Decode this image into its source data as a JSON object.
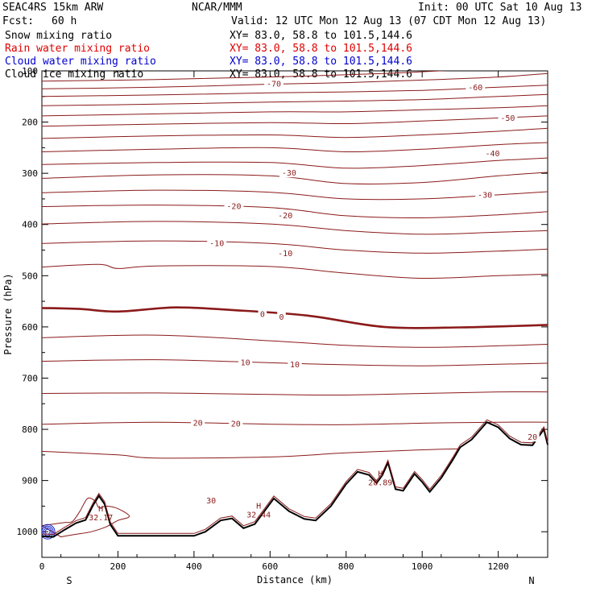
{
  "header": {
    "model": "SEAC4RS 15km ARW",
    "org": "NCAR/MMM",
    "init": "Init: 00 UTC Sat 10 Aug 13",
    "fcst_label": "Fcst:",
    "fcst_value": "60 h",
    "valid": "Valid: 12 UTC Mon 12 Aug 13 (07 CDT Mon 12 Aug 13)"
  },
  "legend": [
    {
      "name": "Snow mixing ratio",
      "xy": "XY=  83.0, 58.8 to 101.5,144.6",
      "color": "#000000"
    },
    {
      "name": "Rain water mixing ratio",
      "xy": "XY=  83.0, 58.8 to 101.5,144.6",
      "color": "#e00000"
    },
    {
      "name": "Cloud water mixing ratio",
      "xy": "XY=  83.0, 58.8 to 101.5,144.6",
      "color": "#0000d0"
    },
    {
      "name": "Cloud ice mixing ratio",
      "xy": "XY=  83.0, 58.8 to 101.5,144.6",
      "color": "#000000"
    }
  ],
  "chart_data": {
    "type": "line",
    "xlabel": "Distance (km)",
    "ylabel": "Pressure (hPa)",
    "xlim": [
      0,
      1330
    ],
    "ylim": [
      1050,
      100
    ],
    "x_ticks": [
      0,
      200,
      400,
      600,
      800,
      1000,
      1200
    ],
    "y_ticks": [
      100,
      200,
      300,
      400,
      500,
      600,
      700,
      800,
      900,
      1000
    ],
    "y_tick_labels": [
      "100",
      "200",
      "300",
      "400",
      "500",
      "600",
      "700",
      "800",
      "900",
      "1000"
    ],
    "endpoint_labels": {
      "left": "S",
      "right": "N"
    },
    "contour_color": "#8b1a1a",
    "terrain_color": "#000000",
    "temperature_contours": [
      {
        "level": -75,
        "points": [
          [
            0,
            120
          ],
          [
            300,
            117
          ],
          [
            600,
            112
          ],
          [
            900,
            105
          ],
          [
            1100,
            98
          ]
        ]
      },
      {
        "level": -70,
        "points": [
          [
            0,
            135
          ],
          [
            300,
            132
          ],
          [
            600,
            126
          ],
          [
            800,
            123
          ],
          [
            1000,
            118
          ],
          [
            1200,
            112
          ],
          [
            1330,
            105
          ]
        ]
      },
      {
        "level": -65,
        "points": [
          [
            0,
            150
          ],
          [
            300,
            147
          ],
          [
            600,
            143
          ],
          [
            800,
            141
          ],
          [
            1000,
            138
          ],
          [
            1200,
            132
          ],
          [
            1330,
            128
          ]
        ]
      },
      {
        "level": -60,
        "points": [
          [
            0,
            168
          ],
          [
            300,
            165
          ],
          [
            600,
            161
          ],
          [
            800,
            159
          ],
          [
            1000,
            156
          ],
          [
            1200,
            150
          ],
          [
            1330,
            146
          ]
        ]
      },
      {
        "level": -55,
        "points": [
          [
            0,
            188
          ],
          [
            300,
            184
          ],
          [
            600,
            180
          ],
          [
            800,
            180
          ],
          [
            1000,
            176
          ],
          [
            1200,
            172
          ],
          [
            1330,
            168
          ]
        ]
      },
      {
        "level": -50,
        "points": [
          [
            0,
            208
          ],
          [
            300,
            204
          ],
          [
            600,
            201
          ],
          [
            800,
            203
          ],
          [
            1000,
            198
          ],
          [
            1200,
            192
          ],
          [
            1330,
            188
          ]
        ]
      },
      {
        "level": -45,
        "points": [
          [
            0,
            232
          ],
          [
            300,
            227
          ],
          [
            600,
            225
          ],
          [
            800,
            230
          ],
          [
            1000,
            225
          ],
          [
            1200,
            218
          ],
          [
            1330,
            212
          ]
        ]
      },
      {
        "level": -40,
        "points": [
          [
            0,
            258
          ],
          [
            300,
            253
          ],
          [
            600,
            250
          ],
          [
            800,
            258
          ],
          [
            1000,
            253
          ],
          [
            1200,
            244
          ],
          [
            1330,
            240
          ]
        ]
      },
      {
        "level": -35,
        "points": [
          [
            0,
            283
          ],
          [
            300,
            279
          ],
          [
            600,
            279
          ],
          [
            800,
            290
          ],
          [
            1000,
            285
          ],
          [
            1200,
            275
          ],
          [
            1330,
            270
          ]
        ]
      },
      {
        "level": -30,
        "points": [
          [
            0,
            310
          ],
          [
            300,
            303
          ],
          [
            600,
            305
          ],
          [
            800,
            320
          ],
          [
            1000,
            318
          ],
          [
            1200,
            305
          ],
          [
            1330,
            298
          ]
        ]
      },
      {
        "level": -25,
        "points": [
          [
            0,
            338
          ],
          [
            300,
            333
          ],
          [
            600,
            337
          ],
          [
            800,
            350
          ],
          [
            1000,
            350
          ],
          [
            1200,
            342
          ],
          [
            1330,
            336
          ]
        ]
      },
      {
        "level": -20,
        "points": [
          [
            0,
            365
          ],
          [
            300,
            362
          ],
          [
            600,
            367
          ],
          [
            800,
            383
          ],
          [
            1000,
            387
          ],
          [
            1200,
            381
          ],
          [
            1330,
            375
          ]
        ]
      },
      {
        "level": -15,
        "points": [
          [
            0,
            399
          ],
          [
            300,
            394
          ],
          [
            600,
            399
          ],
          [
            800,
            412
          ],
          [
            1000,
            419
          ],
          [
            1200,
            415
          ],
          [
            1330,
            412
          ]
        ]
      },
      {
        "level": -10,
        "points": [
          [
            0,
            437
          ],
          [
            300,
            432
          ],
          [
            600,
            437
          ],
          [
            800,
            450
          ],
          [
            1000,
            456
          ],
          [
            1200,
            452
          ],
          [
            1330,
            448
          ]
        ]
      },
      {
        "level": -5,
        "points": [
          [
            0,
            483
          ],
          [
            150,
            478
          ],
          [
            200,
            486
          ],
          [
            300,
            481
          ],
          [
            600,
            482
          ],
          [
            800,
            495
          ],
          [
            1000,
            505
          ],
          [
            1200,
            500
          ],
          [
            1330,
            497
          ]
        ]
      },
      {
        "level": 0,
        "points": [
          [
            0,
            563
          ],
          [
            100,
            565
          ],
          [
            200,
            570
          ],
          [
            350,
            562
          ],
          [
            500,
            567
          ],
          [
            700,
            578
          ],
          [
            900,
            600
          ],
          [
            1100,
            601
          ],
          [
            1330,
            596
          ]
        ]
      },
      {
        "level": 5,
        "points": [
          [
            0,
            621
          ],
          [
            300,
            616
          ],
          [
            600,
            627
          ],
          [
            800,
            636
          ],
          [
            1000,
            640
          ],
          [
            1200,
            637
          ],
          [
            1330,
            634
          ]
        ]
      },
      {
        "level": 10,
        "points": [
          [
            0,
            667
          ],
          [
            300,
            664
          ],
          [
            600,
            670
          ],
          [
            800,
            674
          ],
          [
            1000,
            676
          ],
          [
            1200,
            673
          ],
          [
            1330,
            671
          ]
        ]
      },
      {
        "level": 15,
        "points": [
          [
            0,
            730
          ],
          [
            300,
            729
          ],
          [
            600,
            732
          ],
          [
            800,
            733
          ],
          [
            1000,
            730
          ],
          [
            1200,
            727
          ],
          [
            1330,
            727
          ]
        ]
      },
      {
        "level": 20,
        "points": [
          [
            0,
            790
          ],
          [
            300,
            786
          ],
          [
            600,
            790
          ],
          [
            800,
            791
          ],
          [
            1000,
            788
          ],
          [
            1200,
            786
          ],
          [
            1330,
            786
          ]
        ]
      },
      {
        "level": 25,
        "points": [
          [
            0,
            843
          ],
          [
            200,
            850
          ],
          [
            300,
            856
          ],
          [
            600,
            854
          ],
          [
            800,
            846
          ],
          [
            1000,
            840
          ],
          [
            1100,
            838
          ]
        ]
      }
    ],
    "contour_labels": [
      {
        "text": "-70",
        "x": 610,
        "y": 126
      },
      {
        "text": "-60",
        "x": 1140,
        "y": 133
      },
      {
        "text": "-50",
        "x": 1225,
        "y": 193
      },
      {
        "text": "-40",
        "x": 1185,
        "y": 262
      },
      {
        "text": "-30",
        "x": 650,
        "y": 300
      },
      {
        "text": "-30",
        "x": 1165,
        "y": 343
      },
      {
        "text": "-20",
        "x": 505,
        "y": 365
      },
      {
        "text": "-20",
        "x": 640,
        "y": 383
      },
      {
        "text": "-10",
        "x": 460,
        "y": 437
      },
      {
        "text": "-10",
        "x": 640,
        "y": 457
      },
      {
        "text": "0",
        "x": 580,
        "y": 576
      },
      {
        "text": "0",
        "x": 630,
        "y": 581
      },
      {
        "text": "10",
        "x": 535,
        "y": 670
      },
      {
        "text": "10",
        "x": 665,
        "y": 674
      },
      {
        "text": "20",
        "x": 410,
        "y": 788
      },
      {
        "text": "20",
        "x": 510,
        "y": 790
      },
      {
        "text": "30",
        "x": 445,
        "y": 940
      },
      {
        "text": "20",
        "x": 1290,
        "y": 816
      }
    ],
    "maxima": [
      {
        "label": "H",
        "value": "32.17",
        "x": 155,
        "y": 960
      },
      {
        "label": "H",
        "value": "32.44",
        "x": 570,
        "y": 955
      },
      {
        "label": "H",
        "value": "28.89",
        "x": 890,
        "y": 892
      }
    ],
    "terrain": [
      [
        0,
        1009
      ],
      [
        30,
        1010
      ],
      [
        60,
        996
      ],
      [
        90,
        983
      ],
      [
        115,
        977
      ],
      [
        135,
        948
      ],
      [
        150,
        930
      ],
      [
        165,
        946
      ],
      [
        180,
        986
      ],
      [
        200,
        1008
      ],
      [
        300,
        1008
      ],
      [
        400,
        1008
      ],
      [
        430,
        1000
      ],
      [
        470,
        978
      ],
      [
        500,
        974
      ],
      [
        530,
        993
      ],
      [
        560,
        985
      ],
      [
        610,
        935
      ],
      [
        650,
        960
      ],
      [
        690,
        975
      ],
      [
        720,
        978
      ],
      [
        760,
        950
      ],
      [
        800,
        907
      ],
      [
        830,
        883
      ],
      [
        860,
        889
      ],
      [
        880,
        905
      ],
      [
        895,
        890
      ],
      [
        910,
        865
      ],
      [
        930,
        917
      ],
      [
        950,
        920
      ],
      [
        980,
        887
      ],
      [
        1000,
        903
      ],
      [
        1020,
        922
      ],
      [
        1050,
        895
      ],
      [
        1080,
        860
      ],
      [
        1100,
        835
      ],
      [
        1130,
        820
      ],
      [
        1170,
        786
      ],
      [
        1200,
        796
      ],
      [
        1230,
        818
      ],
      [
        1260,
        830
      ],
      [
        1290,
        831
      ],
      [
        1320,
        800
      ],
      [
        1330,
        830
      ]
    ],
    "rain_hatch_outlines": [
      [
        [
          0,
          988
        ],
        [
          30,
          985
        ],
        [
          60,
          982
        ],
        [
          80,
          980
        ],
        [
          100,
          960
        ],
        [
          120,
          935
        ],
        [
          140,
          940
        ],
        [
          150,
          953
        ],
        [
          170,
          950
        ],
        [
          200,
          955
        ],
        [
          230,
          970
        ],
        [
          200,
          978
        ],
        [
          170,
          990
        ],
        [
          130,
          1000
        ],
        [
          90,
          1005
        ],
        [
          50,
          1010
        ]
      ]
    ],
    "cloud_water_blob": {
      "x": 15,
      "y": 1000
    }
  }
}
